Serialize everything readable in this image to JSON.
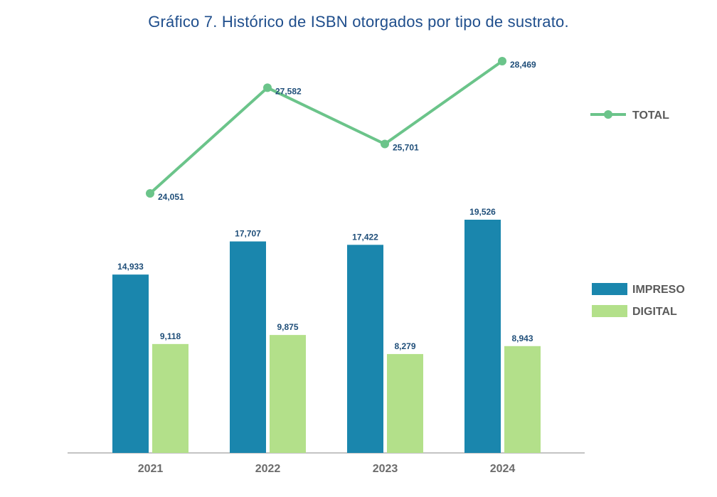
{
  "chart_data": {
    "type": "bar",
    "title": "Gráfico 7. Histórico de ISBN otorgados por tipo de sustrato.",
    "categories": [
      "2021",
      "2022",
      "2023",
      "2024"
    ],
    "series": [
      {
        "name": "IMPRESO",
        "type": "bar",
        "values": [
          14933,
          17707,
          17422,
          19526
        ],
        "labels": [
          "14,933",
          "17,707",
          "17,422",
          "19,526"
        ]
      },
      {
        "name": "DIGITAL",
        "type": "bar",
        "values": [
          9118,
          9875,
          8279,
          8943
        ],
        "labels": [
          "9,118",
          "9,875",
          "8,279",
          "8,943"
        ]
      },
      {
        "name": "TOTAL",
        "type": "line",
        "values": [
          24051,
          27582,
          25701,
          28469
        ],
        "labels": [
          "24,051",
          "27,582",
          "25,701",
          "28,469"
        ]
      }
    ],
    "legend_position": "right",
    "grid": false
  },
  "colors": {
    "impreso": "#1a86ad",
    "digital": "#b3e08a",
    "total": "#6bc48a",
    "title": "#1f4e8c",
    "axis": "#8a8a8a"
  }
}
